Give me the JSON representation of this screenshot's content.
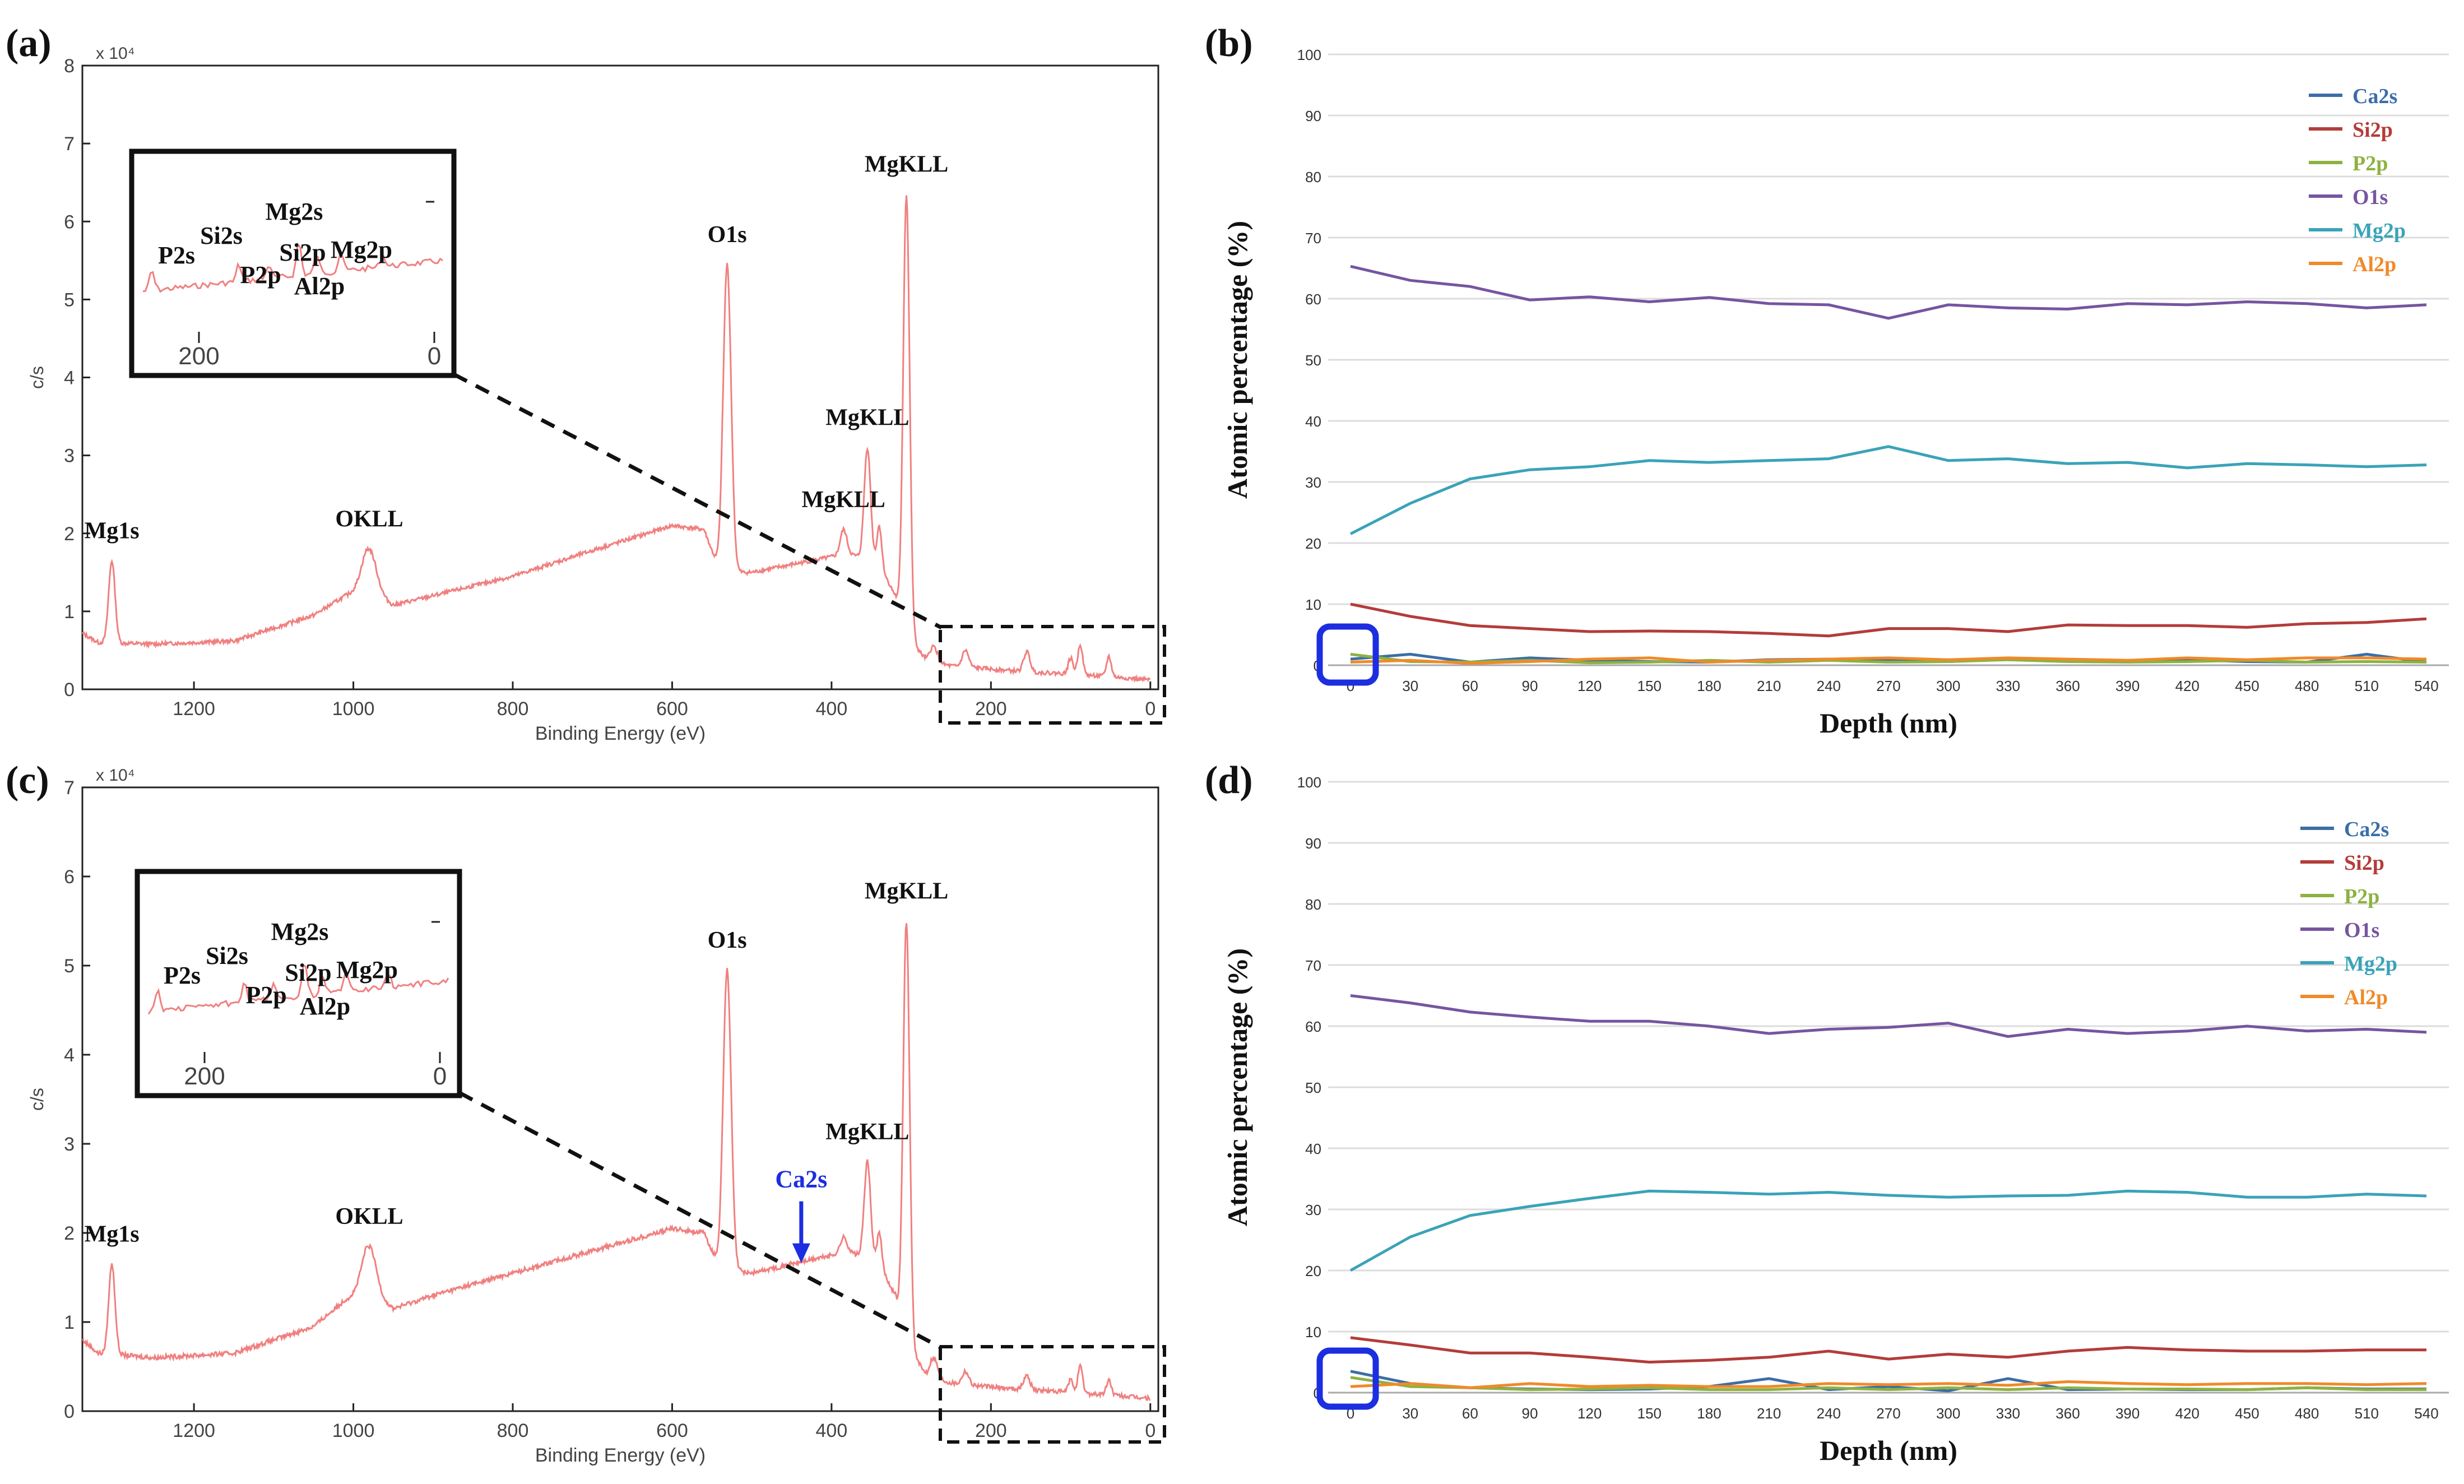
{
  "chart_data": [
    {
      "panel": "(a)",
      "type": "line",
      "title": "",
      "xlabel": "Binding Energy (eV)",
      "ylabel": "c/s",
      "y_multiplier": "x 10⁴",
      "xlim": [
        1340,
        -10
      ],
      "ylim": [
        0,
        8
      ],
      "xticks": [
        "1200",
        "1000",
        "800",
        "600",
        "400",
        "200",
        "0"
      ],
      "yticks": [
        "0",
        "1",
        "2",
        "3",
        "4",
        "5",
        "6",
        "7",
        "8"
      ],
      "baseline": [
        [
          1340,
          0.72
        ],
        [
          1320,
          0.6
        ],
        [
          1250,
          0.58
        ],
        [
          1150,
          0.62
        ],
        [
          1050,
          0.95
        ],
        [
          1010,
          1.2
        ],
        [
          985,
          1.3
        ],
        [
          950,
          1.08
        ],
        [
          900,
          1.2
        ],
        [
          800,
          1.45
        ],
        [
          700,
          1.78
        ],
        [
          600,
          2.1
        ],
        [
          560,
          2.05
        ],
        [
          540,
          1.5
        ],
        [
          500,
          1.5
        ],
        [
          450,
          1.6
        ],
        [
          400,
          1.7
        ],
        [
          380,
          1.75
        ],
        [
          340,
          1.6
        ],
        [
          320,
          1.2
        ],
        [
          305,
          0.7
        ],
        [
          280,
          0.35
        ],
        [
          250,
          0.3
        ],
        [
          200,
          0.26
        ],
        [
          150,
          0.22
        ],
        [
          100,
          0.2
        ],
        [
          50,
          0.16
        ],
        [
          0,
          0.12
        ]
      ],
      "peaks": [
        [
          1303,
          1.65,
          4
        ],
        [
          980,
          1.8,
          9
        ],
        [
          531,
          5.45,
          5
        ],
        [
          385,
          2.05,
          4
        ],
        [
          355,
          3.1,
          4
        ],
        [
          340,
          2.1,
          3
        ],
        [
          306,
          6.35,
          4
        ],
        [
          272,
          0.55,
          5
        ],
        [
          232,
          0.5,
          4
        ],
        [
          155,
          0.48,
          4
        ],
        [
          100,
          0.4,
          3
        ],
        [
          88,
          0.58,
          3
        ],
        [
          52,
          0.42,
          3
        ]
      ],
      "annotations": [
        {
          "label": "Mg1s",
          "x": 1303,
          "y": 1.65
        },
        {
          "label": "OKLL",
          "x": 980,
          "y": 1.8
        },
        {
          "label": "O1s",
          "x": 531,
          "y": 5.45
        },
        {
          "label": "MgKLL",
          "x": 306,
          "y": 6.35
        },
        {
          "label": "MgKLL",
          "x": 355,
          "y": 3.1
        },
        {
          "label": "MgKLL",
          "x": 385,
          "y": 2.05
        }
      ],
      "inset": {
        "xticks": [
          "200",
          "0"
        ],
        "labels": [
          "P2s",
          "Si2s",
          "P2p",
          "Mg2s",
          "Si2p",
          "Mg2p",
          "Al2p"
        ]
      }
    },
    {
      "panel": "(b)",
      "type": "line",
      "title": "",
      "xlabel": "Depth (nm)",
      "ylabel": "Atomic percentage (%)",
      "ylim": [
        0,
        100
      ],
      "x": [
        0,
        30,
        60,
        90,
        120,
        150,
        180,
        210,
        240,
        270,
        300,
        330,
        360,
        390,
        420,
        450,
        480,
        510,
        540
      ],
      "yticks": [
        "0",
        "10",
        "20",
        "30",
        "40",
        "50",
        "60",
        "70",
        "80",
        "90",
        "100"
      ],
      "legend_position": "top-right",
      "series": [
        {
          "name": "Ca2s",
          "color": "#3c6ea8",
          "values": [
            1.0,
            1.8,
            0.5,
            1.2,
            0.8,
            0.6,
            0.5,
            0.9,
            1.0,
            0.8,
            0.6,
            1.0,
            0.8,
            0.6,
            0.9,
            0.6,
            0.5,
            1.8,
            0.5
          ]
        },
        {
          "name": "Si2p",
          "color": "#b33c3a",
          "values": [
            10.0,
            8.0,
            6.5,
            6.0,
            5.5,
            5.6,
            5.5,
            5.2,
            4.8,
            6.0,
            6.0,
            5.5,
            6.6,
            6.5,
            6.5,
            6.2,
            6.8,
            7.0,
            7.6
          ]
        },
        {
          "name": "P2p",
          "color": "#8db240",
          "values": [
            1.8,
            0.6,
            0.5,
            0.8,
            0.4,
            0.5,
            0.8,
            0.5,
            0.8,
            0.5,
            0.6,
            0.9,
            0.6,
            0.5,
            0.6,
            0.8,
            0.5,
            0.6,
            0.5
          ]
        },
        {
          "name": "O1s",
          "color": "#7655a0",
          "values": [
            65.3,
            63.0,
            62.0,
            59.8,
            60.3,
            59.5,
            60.2,
            59.2,
            59.0,
            56.8,
            59.0,
            58.5,
            58.3,
            59.2,
            59.0,
            59.5,
            59.2,
            58.5,
            59.0
          ]
        },
        {
          "name": "Mg2p",
          "color": "#3aa3b8",
          "values": [
            21.5,
            26.5,
            30.5,
            32.0,
            32.5,
            33.5,
            33.2,
            33.5,
            33.8,
            35.8,
            33.5,
            33.8,
            33.0,
            33.2,
            32.3,
            33.0,
            32.8,
            32.5,
            32.8
          ]
        },
        {
          "name": "Al2p",
          "color": "#f08a2a",
          "values": [
            0.5,
            0.8,
            0.3,
            0.6,
            1.0,
            1.2,
            0.5,
            0.8,
            1.0,
            1.2,
            0.9,
            1.2,
            1.0,
            0.8,
            1.2,
            0.9,
            1.2,
            1.2,
            1.0
          ]
        }
      ]
    },
    {
      "panel": "(c)",
      "type": "line",
      "title": "",
      "xlabel": "Binding Energy (eV)",
      "ylabel": "c/s",
      "y_multiplier": "x 10⁴",
      "xlim": [
        1340,
        -10
      ],
      "ylim": [
        0,
        7
      ],
      "xticks": [
        "1200",
        "1000",
        "800",
        "600",
        "400",
        "200",
        "0"
      ],
      "yticks": [
        "0",
        "1",
        "2",
        "3",
        "4",
        "5",
        "6",
        "7"
      ],
      "baseline": [
        [
          1340,
          0.8
        ],
        [
          1320,
          0.65
        ],
        [
          1250,
          0.6
        ],
        [
          1150,
          0.65
        ],
        [
          1050,
          0.95
        ],
        [
          1010,
          1.25
        ],
        [
          985,
          1.35
        ],
        [
          950,
          1.15
        ],
        [
          900,
          1.3
        ],
        [
          800,
          1.55
        ],
        [
          700,
          1.8
        ],
        [
          600,
          2.05
        ],
        [
          560,
          2.0
        ],
        [
          540,
          1.6
        ],
        [
          500,
          1.55
        ],
        [
          450,
          1.65
        ],
        [
          400,
          1.75
        ],
        [
          380,
          1.8
        ],
        [
          340,
          1.65
        ],
        [
          320,
          1.3
        ],
        [
          305,
          0.75
        ],
        [
          280,
          0.38
        ],
        [
          250,
          0.32
        ],
        [
          200,
          0.27
        ],
        [
          150,
          0.24
        ],
        [
          100,
          0.21
        ],
        [
          50,
          0.18
        ],
        [
          0,
          0.14
        ]
      ],
      "peaks": [
        [
          1303,
          1.65,
          4
        ],
        [
          980,
          1.85,
          9
        ],
        [
          531,
          4.95,
          5
        ],
        [
          385,
          1.95,
          4
        ],
        [
          355,
          2.8,
          4
        ],
        [
          340,
          2.0,
          3
        ],
        [
          306,
          5.5,
          4
        ],
        [
          272,
          0.6,
          5
        ],
        [
          232,
          0.45,
          4
        ],
        [
          155,
          0.4,
          4
        ],
        [
          100,
          0.35,
          3
        ],
        [
          88,
          0.5,
          3
        ],
        [
          52,
          0.35,
          3
        ]
      ],
      "annotations": [
        {
          "label": "Mg1s",
          "x": 1303,
          "y": 1.65
        },
        {
          "label": "OKLL",
          "x": 980,
          "y": 1.85
        },
        {
          "label": "O1s",
          "x": 531,
          "y": 4.95
        },
        {
          "label": "MgKLL",
          "x": 306,
          "y": 5.5
        },
        {
          "label": "MgKLL",
          "x": 355,
          "y": 2.8
        },
        {
          "label": "Ca2s",
          "x": 438,
          "y": 1.6,
          "color": "#1c2ee0"
        }
      ],
      "inset": {
        "xticks": [
          "200",
          "0"
        ],
        "labels": [
          "P2s",
          "Si2s",
          "P2p",
          "Mg2s",
          "Si2p",
          "Mg2p",
          "Al2p"
        ]
      }
    },
    {
      "panel": "(d)",
      "type": "line",
      "title": "",
      "xlabel": "Depth (nm)",
      "ylabel": "Atomic percentage (%)",
      "ylim": [
        0,
        100
      ],
      "x": [
        0,
        30,
        60,
        90,
        120,
        150,
        180,
        210,
        240,
        270,
        300,
        330,
        360,
        390,
        420,
        450,
        480,
        510,
        540
      ],
      "yticks": [
        "0",
        "10",
        "20",
        "30",
        "40",
        "50",
        "60",
        "70",
        "80",
        "90",
        "100"
      ],
      "legend_position": "top-right",
      "series": [
        {
          "name": "Ca2s",
          "color": "#3c6ea8",
          "values": [
            3.5,
            1.5,
            0.8,
            0.6,
            0.5,
            0.6,
            1.0,
            2.3,
            0.5,
            1.0,
            0.3,
            2.3,
            0.5,
            0.6,
            0.5,
            0.5,
            0.8,
            0.6,
            0.6
          ]
        },
        {
          "name": "Si2p",
          "color": "#b33c3a",
          "values": [
            9.0,
            7.8,
            6.5,
            6.5,
            5.8,
            5.0,
            5.3,
            5.8,
            6.8,
            5.5,
            6.3,
            5.8,
            6.8,
            7.4,
            7.0,
            6.8,
            6.8,
            7.0,
            7.0
          ]
        },
        {
          "name": "P2p",
          "color": "#8db240",
          "values": [
            2.5,
            1.0,
            0.8,
            0.5,
            0.6,
            0.8,
            0.5,
            0.5,
            0.8,
            0.5,
            0.8,
            0.5,
            0.8,
            0.6,
            0.6,
            0.5,
            0.8,
            0.5,
            0.5
          ]
        },
        {
          "name": "O1s",
          "color": "#7655a0",
          "values": [
            65.0,
            63.8,
            62.3,
            61.5,
            60.8,
            60.8,
            60.0,
            58.8,
            59.5,
            59.8,
            60.5,
            58.3,
            59.5,
            58.8,
            59.2,
            60.0,
            59.2,
            59.5,
            59.0
          ]
        },
        {
          "name": "Mg2p",
          "color": "#3aa3b8",
          "values": [
            20.0,
            25.5,
            29.0,
            30.5,
            31.8,
            33.0,
            32.8,
            32.5,
            32.8,
            32.3,
            32.0,
            32.2,
            32.3,
            33.0,
            32.8,
            32.0,
            32.0,
            32.5,
            32.2
          ]
        },
        {
          "name": "Al2p",
          "color": "#f08a2a",
          "values": [
            1.0,
            1.5,
            0.8,
            1.5,
            1.0,
            1.2,
            1.0,
            1.0,
            1.5,
            1.3,
            1.5,
            1.2,
            1.8,
            1.5,
            1.3,
            1.5,
            1.5,
            1.3,
            1.5
          ]
        }
      ]
    }
  ],
  "panel_labels": [
    "(a)",
    "(b)",
    "(c)",
    "(d)"
  ]
}
